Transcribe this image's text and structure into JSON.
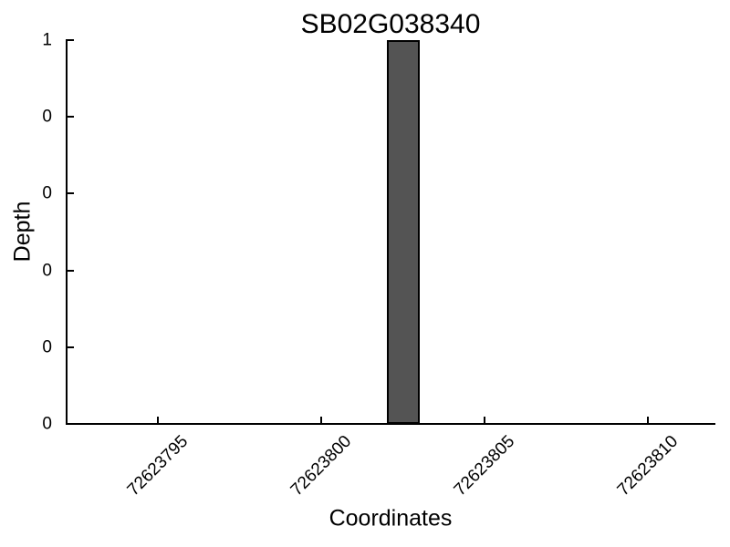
{
  "page": {
    "background": "#ffffff"
  },
  "chart_data": {
    "type": "bar",
    "title": "SB02G038340",
    "xlabel": "Coordinates",
    "ylabel": "Depth",
    "xlim": [
      72623792.2,
      72623812.03
    ],
    "ylim": [
      0,
      1
    ],
    "xticks": {
      "values": [
        72623795,
        72623800,
        72623805,
        72623810
      ],
      "labels": [
        "72623795",
        "72623800",
        "72623805",
        "72623810"
      ],
      "rotation_deg": 45
    },
    "yticks": {
      "values": [
        0,
        0.2,
        0.4,
        0.6,
        0.8,
        1
      ],
      "labels": [
        "0",
        "0",
        "0",
        "0",
        "0",
        "1"
      ]
    },
    "series": [
      {
        "name": "depth",
        "bars": [
          {
            "x_start": 72623802,
            "x_end": 72623803,
            "value": 1
          }
        ]
      }
    ],
    "grid": false,
    "tick_direction": "in",
    "colors": {
      "bar_fill": "#545454",
      "bar_edge": "#000000",
      "axis": "#000000",
      "text": "#000000"
    }
  }
}
